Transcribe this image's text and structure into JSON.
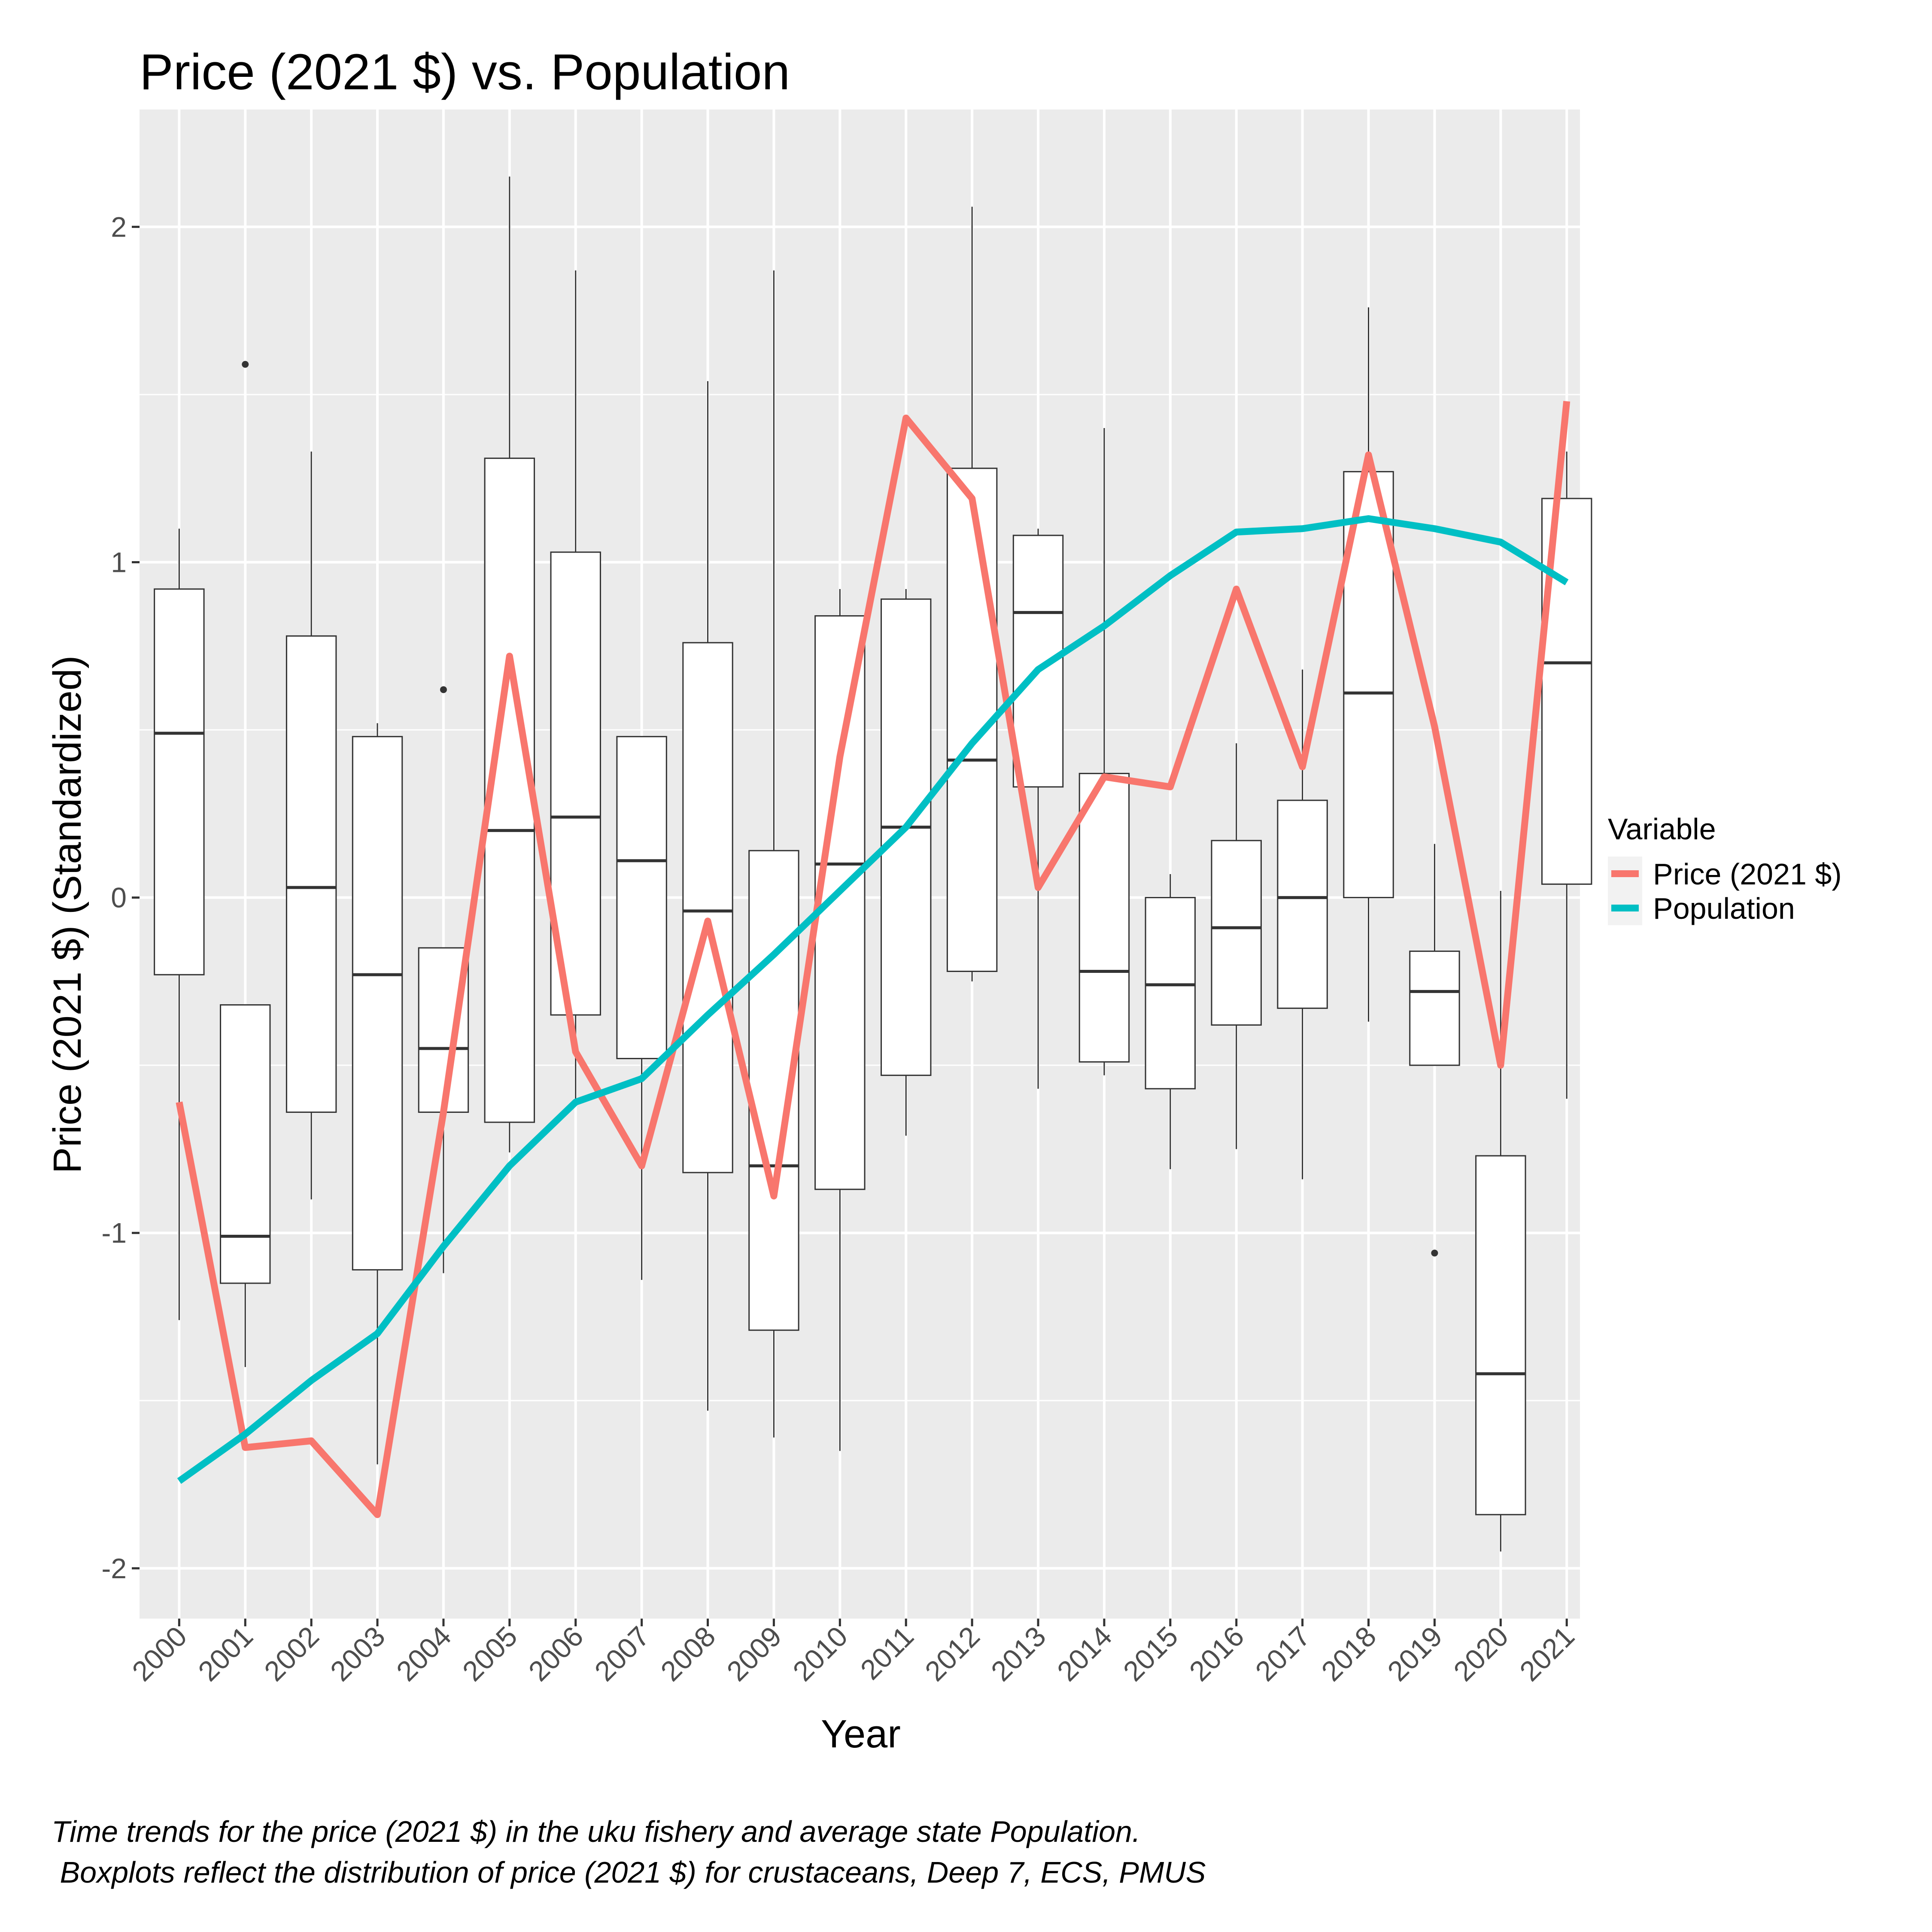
{
  "chart_data": {
    "type": "boxplot+line",
    "title": "Price (2021 $) vs. Population",
    "xlabel": "Year",
    "ylabel": "Price (2021 $) (Standardized)",
    "caption_lines": [
      "Time trends for the price (2021 $) in the uku fishery and average state Population.",
      " Boxplots reflect the distribution of price (2021 $) for crustaceans, Deep 7, ECS, PMUS"
    ],
    "ylim": [
      -2.15,
      2.35
    ],
    "yticks": [
      -2,
      -1,
      0,
      1,
      2
    ],
    "ytick_labels": [
      "-2",
      "-1",
      "0",
      "1",
      "2"
    ],
    "grid": true,
    "legend": {
      "title": "Variable",
      "position": "right"
    },
    "categories": [
      "2000",
      "2001",
      "2002",
      "2003",
      "2004",
      "2005",
      "2006",
      "2007",
      "2008",
      "2009",
      "2010",
      "2011",
      "2012",
      "2013",
      "2014",
      "2015",
      "2016",
      "2017",
      "2018",
      "2019",
      "2020",
      "2021"
    ],
    "boxes": [
      {
        "low": -1.26,
        "q1": -0.23,
        "median": 0.49,
        "q3": 0.92,
        "high": 1.1,
        "outliers": []
      },
      {
        "low": -1.4,
        "q1": -1.15,
        "median": -1.01,
        "q3": -0.32,
        "high": -0.32,
        "outliers": [
          1.59
        ]
      },
      {
        "low": -0.9,
        "q1": -0.64,
        "median": 0.03,
        "q3": 0.78,
        "high": 1.33,
        "outliers": []
      },
      {
        "low": -1.69,
        "q1": -1.11,
        "median": -0.23,
        "q3": 0.48,
        "high": 0.52,
        "outliers": []
      },
      {
        "low": -1.12,
        "q1": -0.64,
        "median": -0.45,
        "q3": -0.15,
        "high": -0.15,
        "outliers": [
          0.62
        ]
      },
      {
        "low": -0.76,
        "q1": -0.67,
        "median": 0.2,
        "q3": 1.31,
        "high": 2.15,
        "outliers": []
      },
      {
        "low": -0.6,
        "q1": -0.35,
        "median": 0.24,
        "q3": 1.03,
        "high": 1.87,
        "outliers": []
      },
      {
        "low": -1.14,
        "q1": -0.48,
        "median": 0.11,
        "q3": 0.48,
        "high": 0.48,
        "outliers": []
      },
      {
        "low": -1.53,
        "q1": -0.82,
        "median": -0.04,
        "q3": 0.76,
        "high": 1.54,
        "outliers": []
      },
      {
        "low": -1.61,
        "q1": -1.29,
        "median": -0.8,
        "q3": 0.14,
        "high": 1.87,
        "outliers": []
      },
      {
        "low": -1.65,
        "q1": -0.87,
        "median": 0.1,
        "q3": 0.84,
        "high": 0.92,
        "outliers": []
      },
      {
        "low": -0.71,
        "q1": -0.53,
        "median": 0.21,
        "q3": 0.89,
        "high": 0.92,
        "outliers": []
      },
      {
        "low": -0.25,
        "q1": -0.22,
        "median": 0.41,
        "q3": 1.28,
        "high": 2.06,
        "outliers": []
      },
      {
        "low": -0.57,
        "q1": 0.33,
        "median": 0.85,
        "q3": 1.08,
        "high": 1.1,
        "outliers": []
      },
      {
        "low": -0.53,
        "q1": -0.49,
        "median": -0.22,
        "q3": 0.37,
        "high": 1.4,
        "outliers": []
      },
      {
        "low": -0.81,
        "q1": -0.57,
        "median": -0.26,
        "q3": 0.0,
        "high": 0.07,
        "outliers": []
      },
      {
        "low": -0.75,
        "q1": -0.38,
        "median": -0.09,
        "q3": 0.17,
        "high": 0.46,
        "outliers": []
      },
      {
        "low": -0.84,
        "q1": -0.33,
        "median": 0.0,
        "q3": 0.29,
        "high": 0.68,
        "outliers": []
      },
      {
        "low": -0.37,
        "q1": 0.0,
        "median": 0.61,
        "q3": 1.27,
        "high": 1.76,
        "outliers": []
      },
      {
        "low": -0.5,
        "q1": -0.5,
        "median": -0.28,
        "q3": -0.16,
        "high": 0.16,
        "outliers": [
          -1.06
        ]
      },
      {
        "low": -1.95,
        "q1": -1.84,
        "median": -1.42,
        "q3": -0.77,
        "high": 0.02,
        "outliers": []
      },
      {
        "low": -0.6,
        "q1": 0.04,
        "median": 0.7,
        "q3": 1.19,
        "high": 1.33,
        "outliers": []
      }
    ],
    "series": [
      {
        "name": "Price (2021 $)",
        "color": "#F8766D",
        "values": [
          -0.61,
          -1.64,
          -1.62,
          -1.84,
          -0.64,
          0.72,
          -0.46,
          -0.8,
          -0.07,
          -0.89,
          0.42,
          1.43,
          1.19,
          0.03,
          0.36,
          0.33,
          0.92,
          0.39,
          1.32,
          0.51,
          -0.5,
          1.48
        ]
      },
      {
        "name": "Population",
        "color": "#00BFC4",
        "values": [
          -1.74,
          -1.6,
          -1.44,
          -1.3,
          -1.04,
          -0.8,
          -0.61,
          -0.54,
          -0.35,
          -0.17,
          0.02,
          0.21,
          0.46,
          0.68,
          0.81,
          0.96,
          1.09,
          1.1,
          1.13,
          1.1,
          1.06,
          0.94
        ]
      }
    ]
  }
}
